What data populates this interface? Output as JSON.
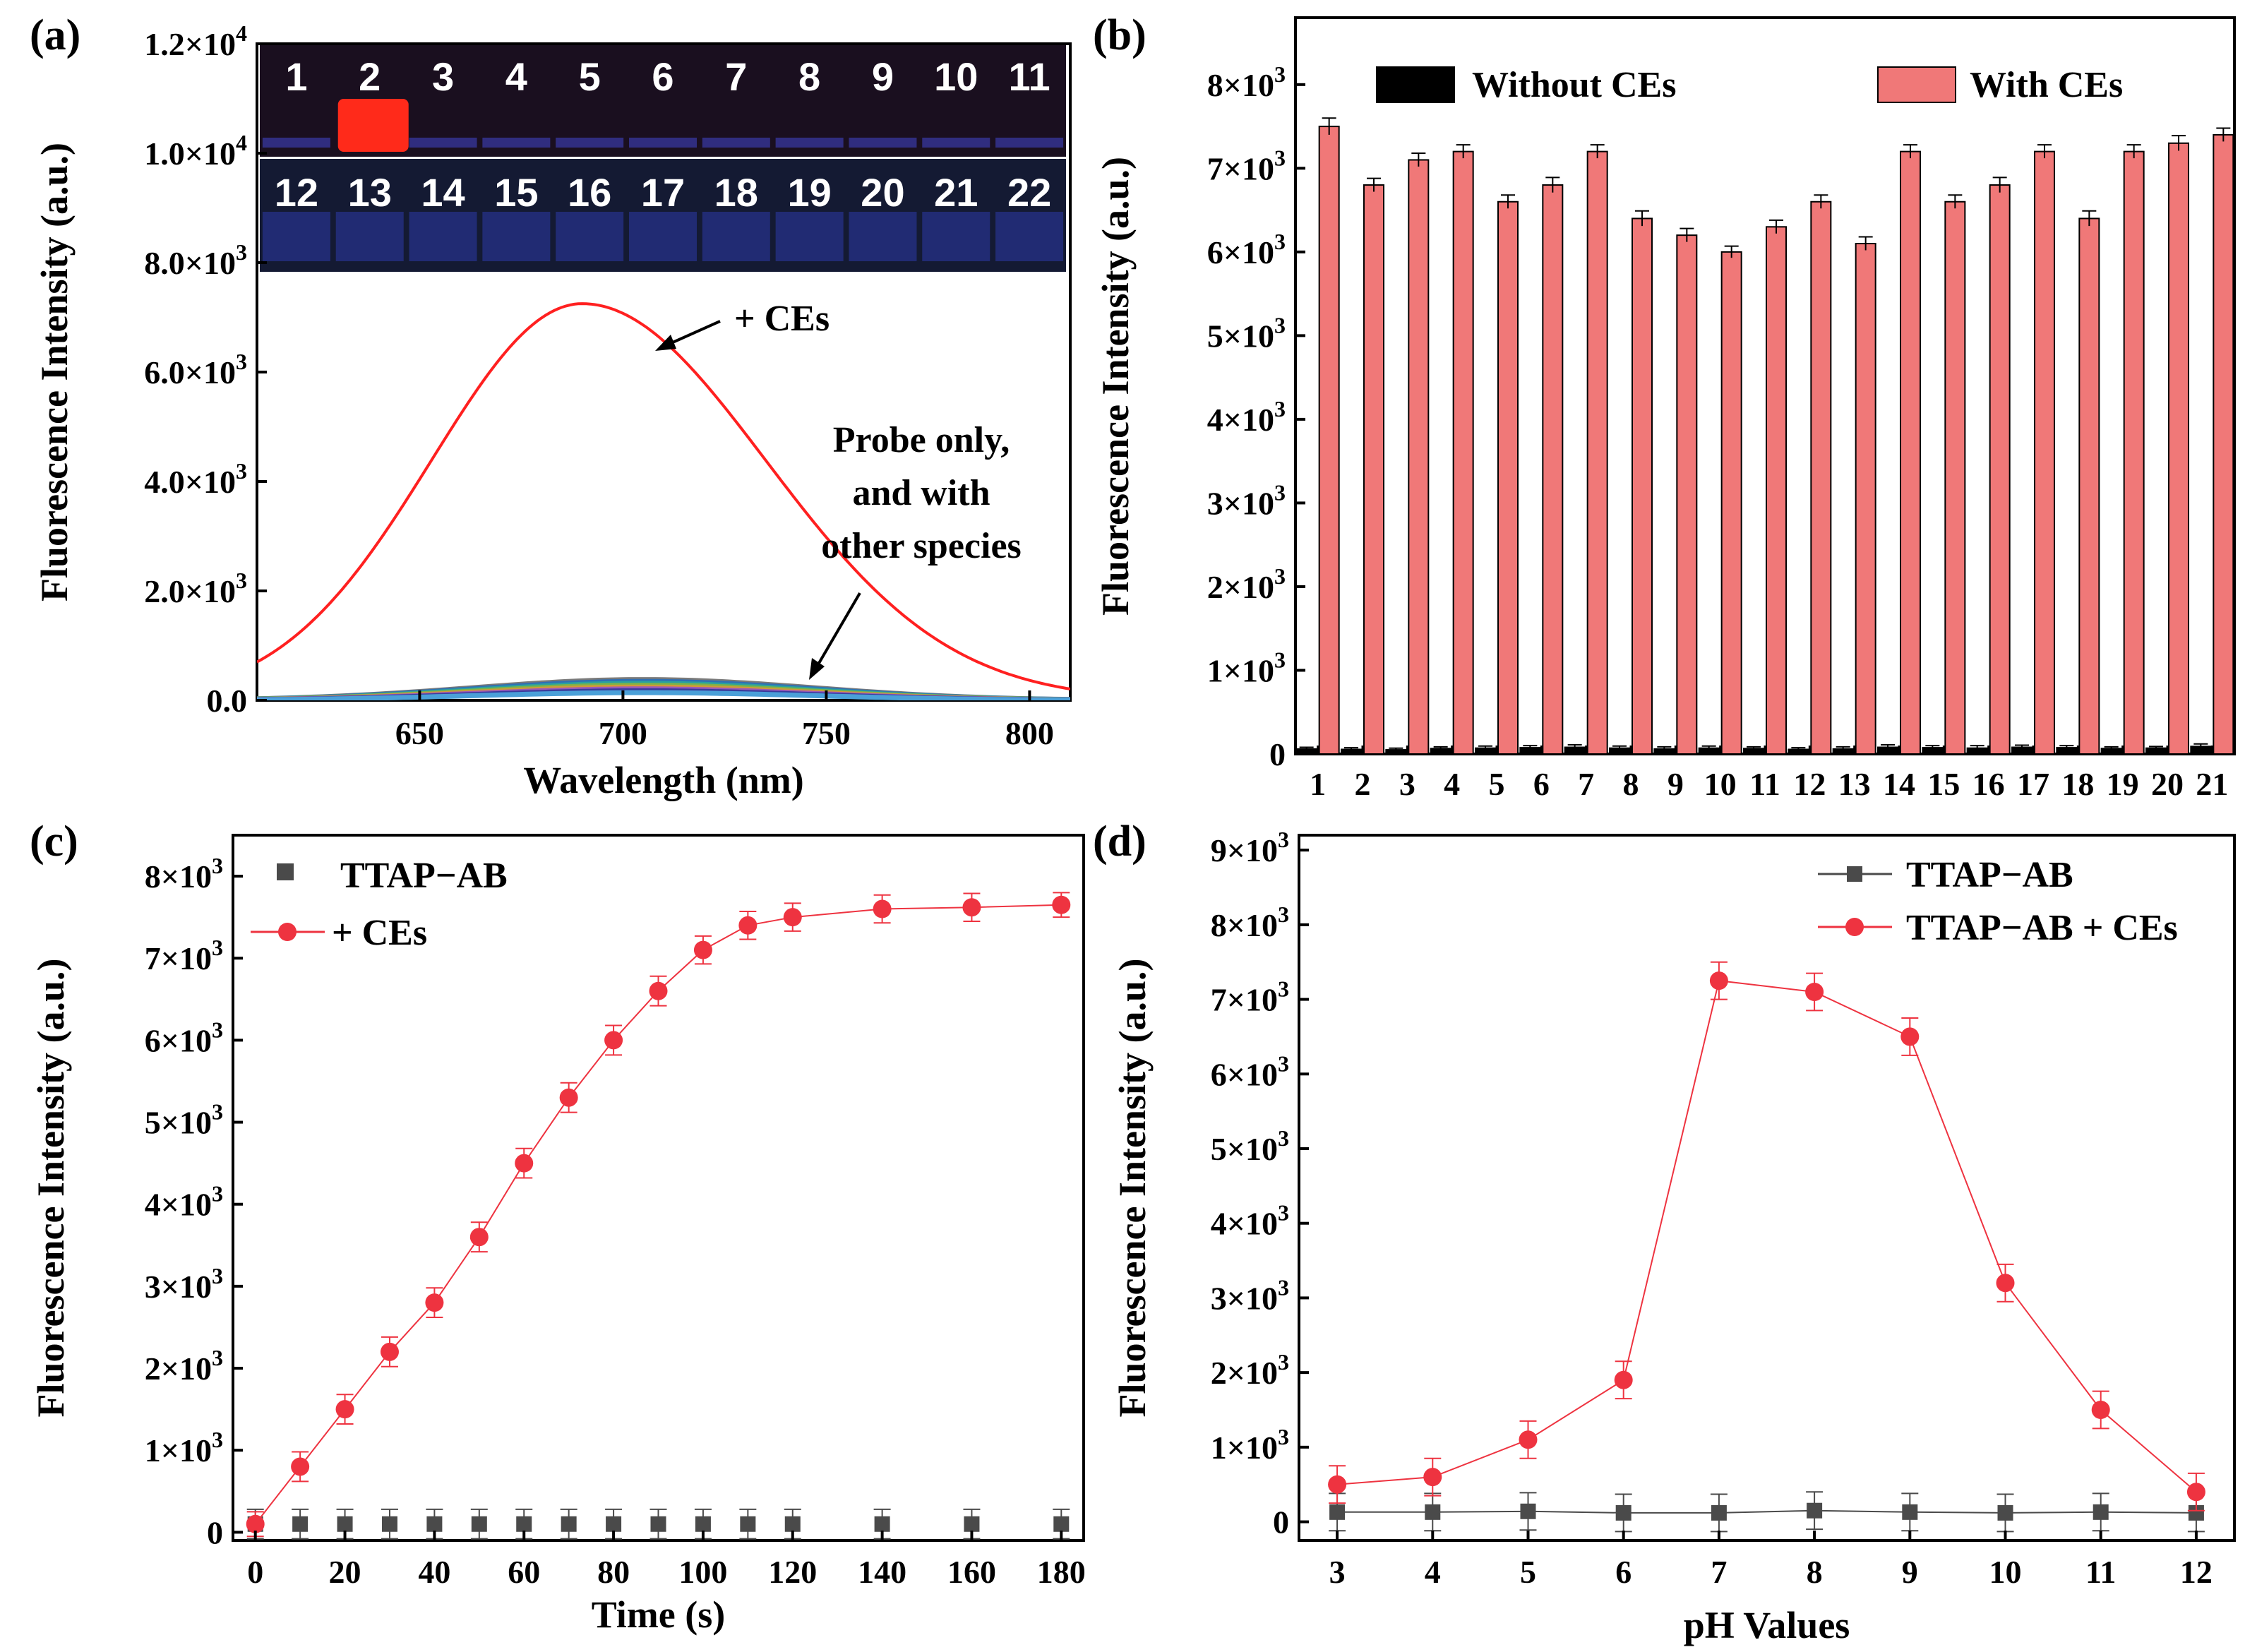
{
  "chart_data": [
    {
      "panel": "(a)",
      "type": "line",
      "xlabel": "Wavelength (nm)",
      "ylabel": "Fluorescence Intensity (a.u.)",
      "xlim": [
        610,
        810
      ],
      "ylim": [
        0,
        12000
      ],
      "xticks": [
        650,
        700,
        750,
        800
      ],
      "yticks": [
        {
          "value": 0,
          "label": "0.0"
        },
        {
          "value": 2000,
          "label": "2.0×10",
          "exp": "3"
        },
        {
          "value": 4000,
          "label": "4.0×10",
          "exp": "3"
        },
        {
          "value": 6000,
          "label": "6.0×10",
          "exp": "3"
        },
        {
          "value": 8000,
          "label": "8.0×10",
          "exp": "3"
        },
        {
          "value": 10000,
          "label": "1.0×10",
          "exp": "4"
        },
        {
          "value": 12000,
          "label": "1.2×10",
          "exp": "4"
        }
      ],
      "series": [
        {
          "name": "+ CEs",
          "color": "#ff2020",
          "peak_x": 690,
          "peak_y": 7250,
          "sigma_left": 37,
          "sigma_right": 45
        }
      ],
      "baseline_band": {
        "peak_x": 705,
        "peak_y": 380,
        "colors": [
          "#7a7a7a",
          "#2f6fb4",
          "#2aa0a0",
          "#7bb34a",
          "#d09a3a",
          "#9b59b6",
          "#3b3b9c",
          "#4aa0d8"
        ]
      },
      "annotations": [
        {
          "text": "+ CEs"
        },
        {
          "lines": [
            "Probe only,",
            "and with",
            "other species"
          ]
        }
      ],
      "inset": {
        "row1": [
          "1",
          "2",
          "3",
          "4",
          "5",
          "6",
          "7",
          "8",
          "9",
          "10",
          "11"
        ],
        "row2": [
          "12",
          "13",
          "14",
          "15",
          "16",
          "17",
          "18",
          "19",
          "20",
          "21",
          "22"
        ],
        "highlight": "2"
      }
    },
    {
      "panel": "(b)",
      "type": "bar",
      "ylabel": "Fluorescence Intensity (a.u.)",
      "ylim": [
        0,
        8000
      ],
      "categories": [
        "1",
        "2",
        "3",
        "4",
        "5",
        "6",
        "7",
        "8",
        "9",
        "10",
        "11",
        "12",
        "13",
        "14",
        "15",
        "16",
        "17",
        "18",
        "19",
        "20",
        "21"
      ],
      "yticks": [
        {
          "value": 0,
          "label": "0"
        },
        {
          "value": 1000,
          "label": "1×10",
          "exp": "3"
        },
        {
          "value": 2000,
          "label": "2×10",
          "exp": "3"
        },
        {
          "value": 3000,
          "label": "3×10",
          "exp": "3"
        },
        {
          "value": 4000,
          "label": "4×10",
          "exp": "3"
        },
        {
          "value": 5000,
          "label": "5×10",
          "exp": "3"
        },
        {
          "value": 6000,
          "label": "6×10",
          "exp": "3"
        },
        {
          "value": 7000,
          "label": "7×10",
          "exp": "3"
        },
        {
          "value": 8000,
          "label": "8×10",
          "exp": "3"
        }
      ],
      "series": [
        {
          "name": "Without CEs",
          "color": "#000000",
          "values": [
            60,
            55,
            50,
            65,
            70,
            75,
            80,
            70,
            60,
            70,
            65,
            55,
            60,
            80,
            75,
            70,
            80,
            75,
            65,
            70,
            90
          ],
          "errors": [
            20,
            20,
            20,
            20,
            25,
            25,
            30,
            25,
            25,
            25,
            20,
            20,
            25,
            30,
            25,
            30,
            25,
            25,
            20,
            20,
            30
          ]
        },
        {
          "name": "With CEs",
          "color": "#f07878",
          "values": [
            7500,
            6800,
            7100,
            7200,
            6600,
            6800,
            7200,
            6400,
            6200,
            6000,
            6300,
            6600,
            6100,
            7200,
            6600,
            6800,
            7200,
            6400,
            7200,
            7300,
            7400
          ],
          "errors": [
            100,
            80,
            80,
            80,
            80,
            90,
            80,
            90,
            80,
            70,
            80,
            80,
            80,
            80,
            80,
            90,
            80,
            90,
            80,
            90,
            80
          ]
        }
      ],
      "legend_position": "top"
    },
    {
      "panel": "(c)",
      "type": "line",
      "xlabel": "Time (s)",
      "ylabel": "Fluorescence Intensity (a.u.)",
      "xlim": [
        -5,
        185
      ],
      "ylim": [
        -100,
        8500
      ],
      "xticks": [
        0,
        20,
        40,
        60,
        80,
        100,
        120,
        140,
        160,
        180
      ],
      "yticks": [
        {
          "value": 0,
          "label": "0"
        },
        {
          "value": 1000,
          "label": "1×10",
          "exp": "3"
        },
        {
          "value": 2000,
          "label": "2×10",
          "exp": "3"
        },
        {
          "value": 3000,
          "label": "3×10",
          "exp": "3"
        },
        {
          "value": 4000,
          "label": "4×10",
          "exp": "3"
        },
        {
          "value": 5000,
          "label": "5×10",
          "exp": "3"
        },
        {
          "value": 6000,
          "label": "6×10",
          "exp": "3"
        },
        {
          "value": 7000,
          "label": "7×10",
          "exp": "3"
        },
        {
          "value": 8000,
          "label": "8×10",
          "exp": "3"
        }
      ],
      "series": [
        {
          "name": "TTAP−AB",
          "color": "#4a4a4a",
          "marker": "square",
          "line": false,
          "x": [
            0,
            10,
            20,
            30,
            40,
            50,
            60,
            70,
            80,
            90,
            100,
            110,
            120,
            140,
            160,
            180
          ],
          "y": [
            100,
            100,
            100,
            100,
            100,
            100,
            100,
            100,
            100,
            100,
            100,
            100,
            100,
            100,
            100,
            100
          ],
          "errors": [
            180,
            180,
            180,
            180,
            180,
            180,
            180,
            180,
            180,
            180,
            180,
            180,
            180,
            180,
            180,
            180
          ]
        },
        {
          "name": "+ CEs",
          "color": "#ee3340",
          "marker": "circle",
          "line": true,
          "x": [
            0,
            10,
            20,
            30,
            40,
            50,
            60,
            70,
            80,
            90,
            100,
            110,
            120,
            140,
            160,
            180
          ],
          "y": [
            100,
            800,
            1500,
            2200,
            2800,
            3600,
            4500,
            5300,
            6000,
            6600,
            7100,
            7400,
            7500,
            7600,
            7620,
            7650
          ],
          "errors": [
            150,
            180,
            180,
            180,
            180,
            180,
            180,
            180,
            180,
            180,
            170,
            170,
            170,
            170,
            170,
            150
          ]
        }
      ],
      "legend_position": "top-left"
    },
    {
      "panel": "(d)",
      "type": "line",
      "xlabel": "pH Values",
      "ylabel": "Fluorescence Intensity (a.u.)",
      "xlim": [
        2.6,
        12.4
      ],
      "ylim": [
        -250,
        9200
      ],
      "xticks": [
        3,
        4,
        5,
        6,
        7,
        8,
        9,
        10,
        11,
        12
      ],
      "yticks": [
        {
          "value": 0,
          "label": "0"
        },
        {
          "value": 1000,
          "label": "1×10",
          "exp": "3"
        },
        {
          "value": 2000,
          "label": "2×10",
          "exp": "3"
        },
        {
          "value": 3000,
          "label": "3×10",
          "exp": "3"
        },
        {
          "value": 4000,
          "label": "4×10",
          "exp": "3"
        },
        {
          "value": 5000,
          "label": "5×10",
          "exp": "3"
        },
        {
          "value": 6000,
          "label": "6×10",
          "exp": "3"
        },
        {
          "value": 7000,
          "label": "7×10",
          "exp": "3"
        },
        {
          "value": 8000,
          "label": "8×10",
          "exp": "3"
        },
        {
          "value": 9000,
          "label": "9×10",
          "exp": "3"
        }
      ],
      "series": [
        {
          "name": "TTAP−AB",
          "color": "#4a4a4a",
          "marker": "square",
          "line": true,
          "x": [
            3,
            4,
            5,
            6,
            7,
            8,
            9,
            10,
            11,
            12
          ],
          "y": [
            130,
            130,
            140,
            120,
            120,
            150,
            130,
            120,
            130,
            120
          ],
          "errors": [
            250,
            250,
            250,
            250,
            250,
            250,
            250,
            250,
            250,
            250
          ]
        },
        {
          "name": "TTAP−AB + CEs",
          "color": "#ee3340",
          "marker": "circle",
          "line": true,
          "x": [
            3,
            4,
            5,
            6,
            7,
            8,
            9,
            10,
            11,
            12
          ],
          "y": [
            500,
            600,
            1100,
            1900,
            7250,
            7100,
            6500,
            3200,
            1500,
            400
          ],
          "errors": [
            250,
            250,
            250,
            250,
            250,
            250,
            250,
            250,
            250,
            250
          ]
        }
      ],
      "legend_position": "top-right"
    }
  ]
}
